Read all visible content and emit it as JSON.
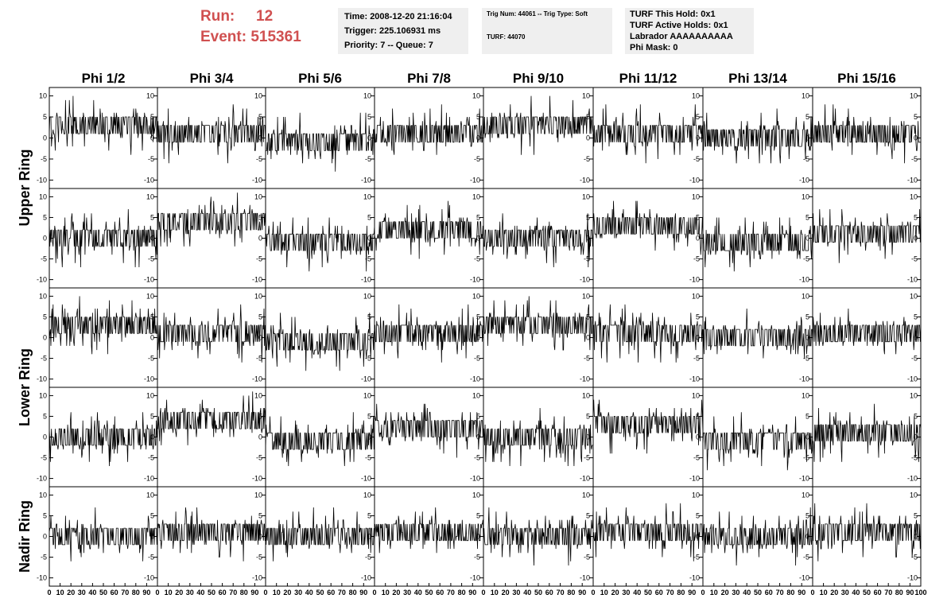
{
  "run": {
    "label": "Run:",
    "value": "12"
  },
  "event": {
    "label": "Event:",
    "value": "515361"
  },
  "info_time": {
    "time": "Time: 2008-12-20 21:16:04",
    "trigger": "Trigger: 225.106931 ms",
    "priority": "Priority: 7 -- Queue: 7"
  },
  "info_trig": {
    "trig": "Trig Num: 44061 -- Trig Type: Soft",
    "turf": "TURF: 44070"
  },
  "info_turf": {
    "hold": "TURF This Hold: 0x1",
    "active": "TURF Active Holds: 0x1",
    "labrador": "Labrador AAAAAAAAAA",
    "phimask": "Phi Mask: 0"
  },
  "chart_data": {
    "type": "line",
    "column_titles": [
      "Phi 1/2",
      "Phi 3/4",
      "Phi 5/6",
      "Phi 7/8",
      "Phi 9/10",
      "Phi 11/12",
      "Phi 13/14",
      "Phi 15/16"
    ],
    "ring_labels": [
      {
        "text": "Upper Ring",
        "rows": [
          0,
          1
        ]
      },
      {
        "text": "Lower Ring",
        "rows": [
          2,
          3
        ]
      },
      {
        "text": "Nadir Ring",
        "rows": [
          4
        ]
      }
    ],
    "rows": 5,
    "x_range": [
      0,
      100
    ],
    "y_range": [
      -12,
      12
    ],
    "x_ticks": [
      0,
      10,
      20,
      30,
      40,
      50,
      60,
      70,
      80,
      90,
      100
    ],
    "y_ticks": [
      10,
      5,
      0,
      -5,
      -10
    ],
    "x_ticks_last_col": [
      0,
      10,
      20,
      30,
      40,
      50,
      60,
      70,
      80,
      90,
      100
    ],
    "baseline_levels": [
      [
        3,
        1,
        -1,
        1,
        3,
        1,
        0,
        1
      ],
      [
        0,
        4,
        -1,
        2,
        0,
        3,
        -1,
        1
      ],
      [
        3,
        1,
        -1,
        1,
        3,
        1,
        0,
        1
      ],
      [
        0,
        4,
        -1,
        2,
        0,
        3,
        -1,
        1
      ],
      [
        0,
        1,
        0,
        1,
        0,
        1,
        0,
        1
      ]
    ],
    "colors": {
      "trace": "#000000",
      "frame": "#000000",
      "run_text": "#d05050",
      "info_bg": "#efefef"
    }
  }
}
